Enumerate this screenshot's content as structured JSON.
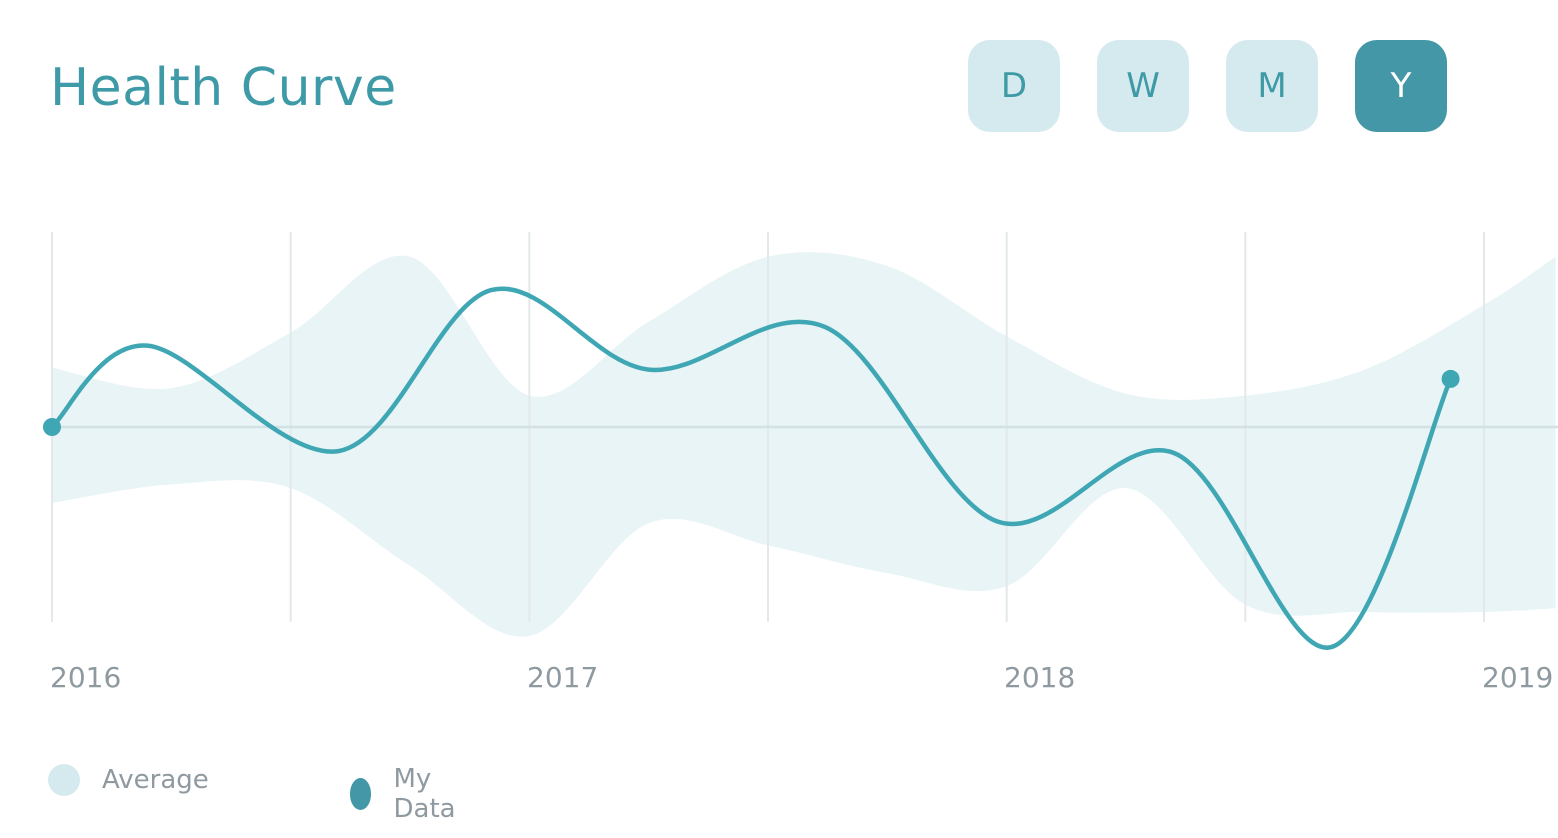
{
  "header": {
    "title": "Health Curve"
  },
  "range_selector": {
    "options": [
      "D",
      "W",
      "M",
      "Y"
    ],
    "selected": "Y"
  },
  "colors": {
    "accent": "#3f9aa8",
    "average_fill": "#e8f4f6",
    "line": "#3fa6b4",
    "gridline": "#e3e9ea",
    "baseline": "#d2e2e4",
    "button_idle": "#d5eaee",
    "button_active": "#4497a6",
    "legend_average": "#d5eaee",
    "legend_mydata": "#4497a6"
  },
  "legend": {
    "average_label": "Average",
    "mydata_label": "My Data"
  },
  "chart_data": {
    "type": "line",
    "x_tick_labels": [
      "2016",
      "2017",
      "2018",
      "2019"
    ],
    "xlim": [
      2016,
      2019
    ],
    "ylim": [
      -1,
      1
    ],
    "grid": true,
    "legend_position": "bottom-left",
    "series": [
      {
        "name": "My Data",
        "type": "line",
        "x": [
          2016.0,
          2016.2,
          2016.6,
          2016.92,
          2017.25,
          2017.62,
          2017.98,
          2018.35,
          2018.68,
          2018.93
        ],
        "y": [
          0.0,
          0.44,
          -0.13,
          0.74,
          0.31,
          0.54,
          -0.51,
          -0.14,
          -1.19,
          0.26
        ]
      },
      {
        "name": "Average",
        "type": "band",
        "x": [
          2016.0,
          2016.25,
          2016.5,
          2016.75,
          2017.0,
          2017.25,
          2017.5,
          2017.75,
          2018.0,
          2018.25,
          2018.5,
          2018.75,
          2019.0,
          2019.15
        ],
        "upper": [
          0.32,
          0.21,
          0.51,
          0.92,
          0.17,
          0.57,
          0.92,
          0.87,
          0.49,
          0.18,
          0.17,
          0.31,
          0.66,
          0.92
        ],
        "lower": [
          -0.41,
          -0.31,
          -0.33,
          -0.75,
          -1.13,
          -0.52,
          -0.64,
          -0.79,
          -0.86,
          -0.33,
          -0.96,
          -1.0,
          -1.0,
          -0.98
        ]
      }
    ]
  }
}
